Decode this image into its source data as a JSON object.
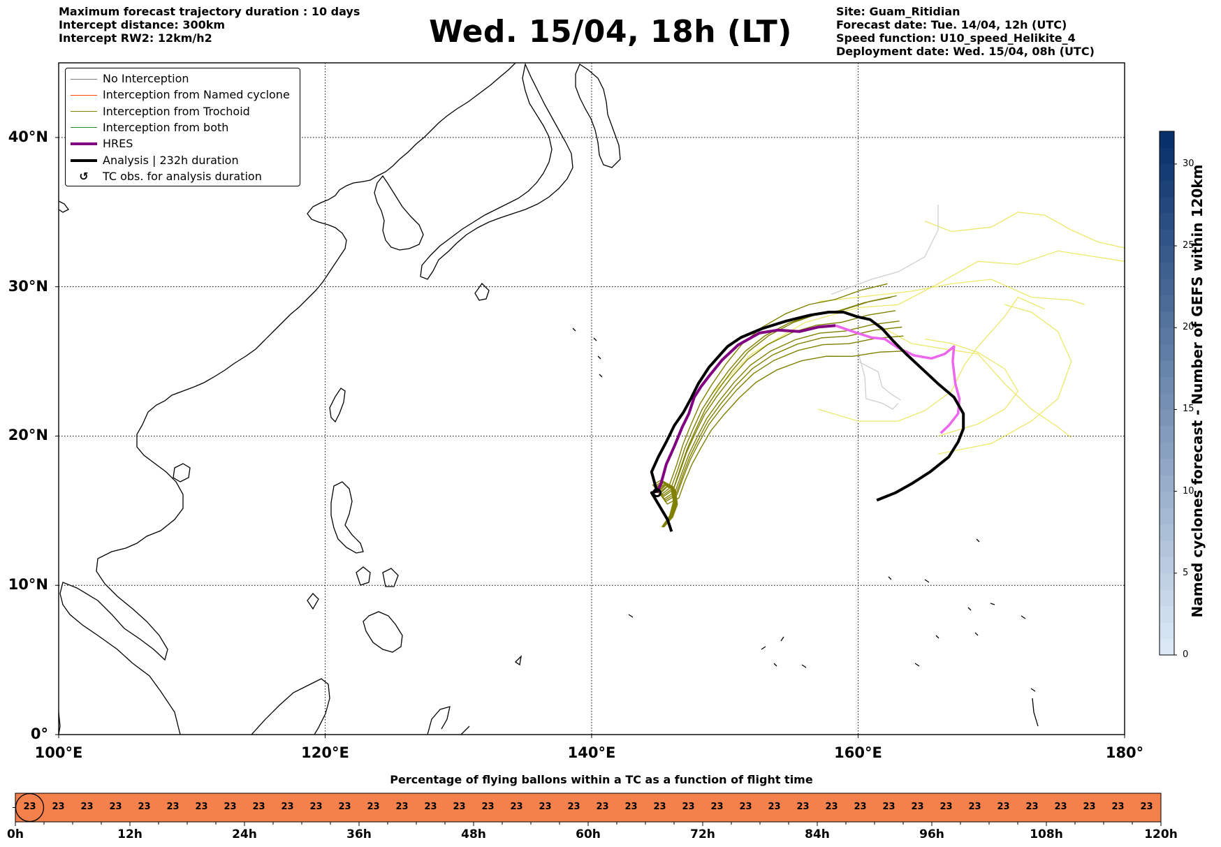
{
  "header_left": {
    "line1": "Maximum forecast trajectory duration : 10 days",
    "line2": "Intercept distance: 300km",
    "line3": "Intercept RW2: 12km/h2"
  },
  "title": "Wed. 15/04, 18h (LT)",
  "header_right": {
    "line1": "Site: Guam_Ritidian",
    "line2": "Forecast date: Tue. 14/04, 12h (UTC)",
    "line3": "Speed function: U10_speed_Helikite_4",
    "line4": "Deployment date: Wed. 15/04, 08h (UTC)"
  },
  "legend": {
    "items": [
      {
        "label": "No Interception",
        "color": "#808080"
      },
      {
        "label": "Interception from Named cyclone",
        "color": "#ff4500"
      },
      {
        "label": "Interception from Trochoid",
        "color": "#808000"
      },
      {
        "label": "Interception from both",
        "color": "#228b22"
      },
      {
        "label": "HRES",
        "color": "#800080"
      },
      {
        "label": "Analysis | 232h duration",
        "color": "#000000"
      },
      {
        "label": "TC obs. for analysis duration",
        "symbol": "↺"
      }
    ]
  },
  "map": {
    "lon_range": [
      100,
      180
    ],
    "lat_range": [
      0,
      45
    ],
    "lon_labels": [
      "100°E",
      "120°E",
      "140°E",
      "160°E",
      "180°"
    ],
    "lat_labels": [
      "0°",
      "10°N",
      "20°N",
      "30°N",
      "40°N"
    ],
    "gridlines": "dotted",
    "tracks": {
      "hres": {
        "color": "#800080",
        "points": [
          [
            144.9,
            16.2
          ],
          [
            145.2,
            16.8
          ],
          [
            145.6,
            18.1
          ],
          [
            146.2,
            19.3
          ],
          [
            146.8,
            20.6
          ],
          [
            147.3,
            21.5
          ],
          [
            147.7,
            22.6
          ],
          [
            148.2,
            23.3
          ],
          [
            148.8,
            24.0
          ],
          [
            149.8,
            25.1
          ],
          [
            151.0,
            26.1
          ],
          [
            152.6,
            26.9
          ],
          [
            154.0,
            27.1
          ],
          [
            155.6,
            27.0
          ],
          [
            157.0,
            27.3
          ],
          [
            158.3,
            27.4
          ]
        ]
      },
      "hres_extension": {
        "color": "#ee66ee",
        "points": [
          [
            158.3,
            27.4
          ],
          [
            159.6,
            27.0
          ],
          [
            161.0,
            26.6
          ],
          [
            162.0,
            26.5
          ],
          [
            163.0,
            25.9
          ],
          [
            164.2,
            25.4
          ],
          [
            165.5,
            25.2
          ],
          [
            166.5,
            25.5
          ],
          [
            167.2,
            26.0
          ],
          [
            167.1,
            25.0
          ],
          [
            167.3,
            23.5
          ],
          [
            167.6,
            22.5
          ],
          [
            167.5,
            21.5
          ],
          [
            166.8,
            20.7
          ],
          [
            166.2,
            20.2
          ]
        ]
      },
      "analysis": {
        "color": "#000000",
        "duration_h": 232,
        "points": [
          [
            161.4,
            15.7
          ],
          [
            162.8,
            16.2
          ],
          [
            164.0,
            16.8
          ],
          [
            165.4,
            17.6
          ],
          [
            166.8,
            18.6
          ],
          [
            167.5,
            19.6
          ],
          [
            167.9,
            20.5
          ],
          [
            167.9,
            21.5
          ],
          [
            167.2,
            22.6
          ],
          [
            166.0,
            23.5
          ],
          [
            164.8,
            24.5
          ],
          [
            163.6,
            25.5
          ],
          [
            162.6,
            26.4
          ],
          [
            161.8,
            27.2
          ],
          [
            160.9,
            27.8
          ],
          [
            159.9,
            28.0
          ],
          [
            158.9,
            28.3
          ],
          [
            157.8,
            28.3
          ],
          [
            156.4,
            28.1
          ],
          [
            154.6,
            27.7
          ],
          [
            152.8,
            27.2
          ],
          [
            151.2,
            26.6
          ],
          [
            150.2,
            26.0
          ],
          [
            149.6,
            25.4
          ],
          [
            148.8,
            24.6
          ],
          [
            148.0,
            23.5
          ],
          [
            147.5,
            22.6
          ],
          [
            146.9,
            21.6
          ],
          [
            146.2,
            20.7
          ],
          [
            145.6,
            19.6
          ],
          [
            145.0,
            18.6
          ],
          [
            144.5,
            17.6
          ],
          [
            144.9,
            16.3
          ],
          [
            144.5,
            16.2
          ],
          [
            145.1,
            15.3
          ],
          [
            145.7,
            14.4
          ],
          [
            146.0,
            13.6
          ]
        ]
      },
      "trochoid_color": "#808000",
      "gefs_no_int_color": "#cfcfcf",
      "gefs_yellow_color": "#ece86a"
    }
  },
  "colorbar": {
    "label": "Named cyclones forecast - Number of GEFS within 120km",
    "min": 0,
    "max": 32,
    "ticks": [
      "0",
      "5",
      "10",
      "15",
      "20",
      "25",
      "30"
    ],
    "color_low": "#dbe9f6",
    "color_high": "#08306b"
  },
  "flight_bar": {
    "title": "Percentage of flying ballons within a TC as a function of flight time",
    "value": "23",
    "count": 40,
    "fill_color": "#f4814c",
    "tick_labels": [
      "0h",
      "12h",
      "24h",
      "36h",
      "48h",
      "60h",
      "72h",
      "84h",
      "96h",
      "108h",
      "120h"
    ]
  }
}
